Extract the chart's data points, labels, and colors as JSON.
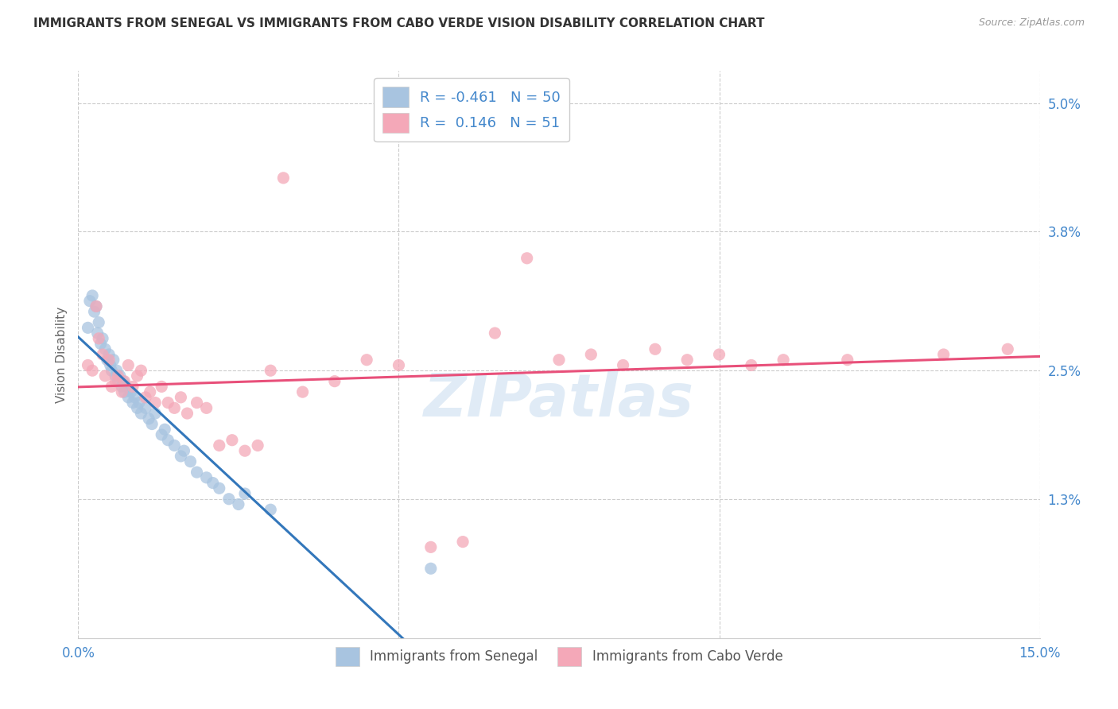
{
  "title": "IMMIGRANTS FROM SENEGAL VS IMMIGRANTS FROM CABO VERDE VISION DISABILITY CORRELATION CHART",
  "source": "Source: ZipAtlas.com",
  "ylabel": "Vision Disability",
  "yticks": [
    1.3,
    2.5,
    3.8,
    5.0
  ],
  "ytick_labels": [
    "1.3%",
    "2.5%",
    "3.8%",
    "5.0%"
  ],
  "xlim": [
    0.0,
    15.0
  ],
  "ylim": [
    0.0,
    5.3
  ],
  "R_senegal": -0.461,
  "N_senegal": 50,
  "R_caboverde": 0.146,
  "N_caboverde": 51,
  "color_senegal": "#a8c4e0",
  "color_caboverde": "#f4a8b8",
  "line_color_senegal": "#3377bb",
  "line_color_caboverde": "#e8507a",
  "line_color_extrapolated": "#bbbbbb",
  "background_color": "#ffffff",
  "grid_color": "#cccccc",
  "title_color": "#333333",
  "label_color": "#4488cc",
  "watermark": "ZIPatlas",
  "senegal_x": [
    0.15,
    0.18,
    0.22,
    0.25,
    0.28,
    0.3,
    0.32,
    0.35,
    0.38,
    0.42,
    0.45,
    0.48,
    0.5,
    0.52,
    0.55,
    0.58,
    0.6,
    0.62,
    0.65,
    0.68,
    0.7,
    0.72,
    0.75,
    0.78,
    0.82,
    0.85,
    0.88,
    0.92,
    0.95,
    0.98,
    1.05,
    1.1,
    1.15,
    1.2,
    1.3,
    1.35,
    1.4,
    1.5,
    1.6,
    1.65,
    1.75,
    1.85,
    2.0,
    2.1,
    2.2,
    2.35,
    2.5,
    2.6,
    3.0,
    5.5
  ],
  "senegal_y": [
    2.9,
    3.15,
    3.2,
    3.05,
    3.1,
    2.85,
    2.95,
    2.75,
    2.8,
    2.7,
    2.6,
    2.65,
    2.55,
    2.5,
    2.6,
    2.45,
    2.5,
    2.4,
    2.45,
    2.35,
    2.4,
    2.3,
    2.35,
    2.25,
    2.3,
    2.2,
    2.25,
    2.15,
    2.2,
    2.1,
    2.15,
    2.05,
    2.0,
    2.1,
    1.9,
    1.95,
    1.85,
    1.8,
    1.7,
    1.75,
    1.65,
    1.55,
    1.5,
    1.45,
    1.4,
    1.3,
    1.25,
    1.35,
    1.2,
    0.65
  ],
  "caboverde_x": [
    0.15,
    0.22,
    0.28,
    0.32,
    0.38,
    0.42,
    0.48,
    0.52,
    0.58,
    0.62,
    0.68,
    0.72,
    0.78,
    0.85,
    0.92,
    0.98,
    1.05,
    1.12,
    1.2,
    1.3,
    1.4,
    1.5,
    1.6,
    1.7,
    1.85,
    2.0,
    2.2,
    2.4,
    2.6,
    2.8,
    3.0,
    3.2,
    3.5,
    4.0,
    4.5,
    5.0,
    5.5,
    6.0,
    6.5,
    7.0,
    7.5,
    8.0,
    8.5,
    9.0,
    9.5,
    10.0,
    10.5,
    11.0,
    12.0,
    13.5,
    14.5
  ],
  "caboverde_y": [
    2.55,
    2.5,
    3.1,
    2.8,
    2.65,
    2.45,
    2.6,
    2.35,
    2.4,
    2.45,
    2.3,
    2.4,
    2.55,
    2.35,
    2.45,
    2.5,
    2.25,
    2.3,
    2.2,
    2.35,
    2.2,
    2.15,
    2.25,
    2.1,
    2.2,
    2.15,
    1.8,
    1.85,
    1.75,
    1.8,
    2.5,
    4.3,
    2.3,
    2.4,
    2.6,
    2.55,
    0.85,
    0.9,
    2.85,
    3.55,
    2.6,
    2.65,
    2.55,
    2.7,
    2.6,
    2.65,
    2.55,
    2.6,
    2.6,
    2.65,
    2.7
  ]
}
